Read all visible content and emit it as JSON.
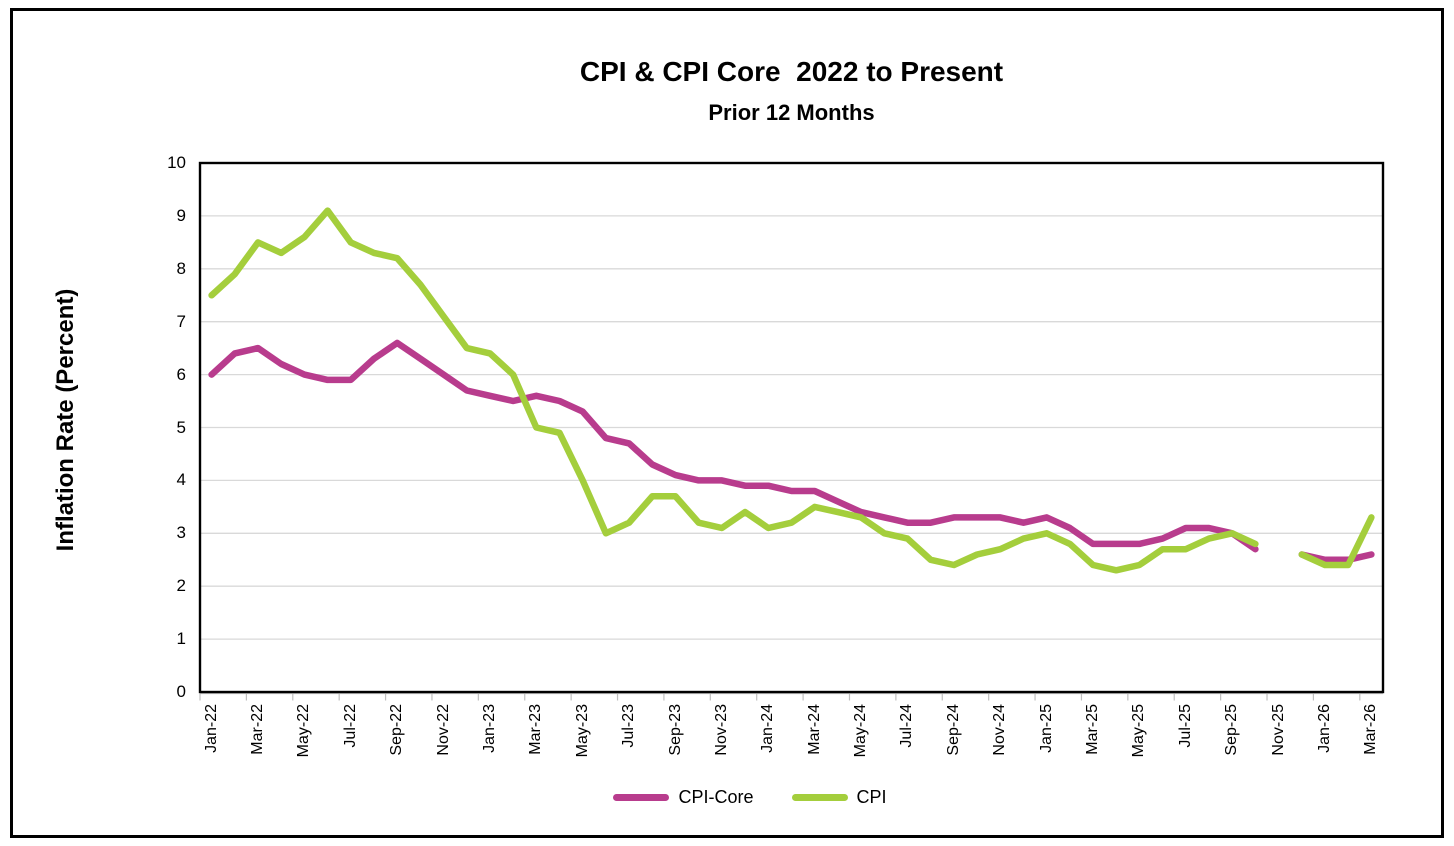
{
  "figure": {
    "title": "CPI & CPI Core  2022 to Present",
    "subtitle": "Prior 12 Months"
  },
  "chart_data": {
    "type": "line",
    "title": "CPI & CPI Core  2022 to Present",
    "subtitle": "Prior 12 Months",
    "ylabel": "Inflation Rate (Percent)",
    "ylim": [
      0,
      10
    ],
    "ytick_step": 1,
    "y_tick_labels": [
      "10",
      "9",
      "8",
      "7",
      "6",
      "5",
      "4",
      "3",
      "2",
      "1",
      "0"
    ],
    "grid": "horizontal",
    "legend_position": "bottom",
    "x_label_interval": 2,
    "x_label_rotation": 90,
    "categories": [
      "Jan-22",
      "Feb-22",
      "Mar-22",
      "Apr-22",
      "May-22",
      "Jun-22",
      "Jul-22",
      "Aug-22",
      "Sep-22",
      "Oct-22",
      "Nov-22",
      "Dec-22",
      "Jan-23",
      "Feb-23",
      "Mar-23",
      "Apr-23",
      "May-23",
      "Jun-23",
      "Jul-23",
      "Aug-23",
      "Sep-23",
      "Oct-23",
      "Nov-23",
      "Dec-23",
      "Jan-24",
      "Feb-24",
      "Mar-24",
      "Apr-24",
      "May-24",
      "Jun-24",
      "Jul-24",
      "Aug-24",
      "Sep-24",
      "Oct-24",
      "Nov-24",
      "Dec-24",
      "Jan-25",
      "Feb-25",
      "Mar-25",
      "Apr-25",
      "May-25",
      "Jun-25",
      "Jul-25",
      "Aug-25",
      "Sep-25",
      "Oct-25",
      "Nov-25",
      "Dec-25",
      "Jan-26",
      "Feb-26",
      "Mar-26"
    ],
    "series": [
      {
        "name": "CPI-Core",
        "color": "#B83C8D",
        "values": [
          6.0,
          6.4,
          6.5,
          6.2,
          6.0,
          5.9,
          5.9,
          6.3,
          6.6,
          6.3,
          6.0,
          5.7,
          5.6,
          5.5,
          5.6,
          5.5,
          5.3,
          4.8,
          4.7,
          4.3,
          4.1,
          4.0,
          4.0,
          3.9,
          3.9,
          3.8,
          3.8,
          3.6,
          3.4,
          3.3,
          3.2,
          3.2,
          3.3,
          3.3,
          3.3,
          3.2,
          3.3,
          3.1,
          2.8,
          2.8,
          2.8,
          2.9,
          3.1,
          3.1,
          3.0,
          2.7,
          null,
          2.6,
          2.5,
          2.5,
          2.6
        ]
      },
      {
        "name": "CPI",
        "color": "#A4CE3C",
        "values": [
          7.5,
          7.9,
          8.5,
          8.3,
          8.6,
          9.1,
          8.5,
          8.3,
          8.2,
          7.7,
          7.1,
          6.5,
          6.4,
          6.0,
          5.0,
          4.9,
          4.0,
          3.0,
          3.2,
          3.7,
          3.7,
          3.2,
          3.1,
          3.4,
          3.1,
          3.2,
          3.5,
          3.4,
          3.3,
          3.0,
          2.9,
          2.5,
          2.4,
          2.6,
          2.7,
          2.9,
          3.0,
          2.8,
          2.4,
          2.3,
          2.4,
          2.7,
          2.7,
          2.9,
          3.0,
          2.8,
          null,
          2.6,
          2.4,
          2.4,
          3.3
        ]
      }
    ],
    "styles": {
      "gridline_color": "#D9D9D9",
      "plot_border_color": "#000000",
      "tick_color": "#BFBFBF",
      "line_width": 6.5
    }
  }
}
